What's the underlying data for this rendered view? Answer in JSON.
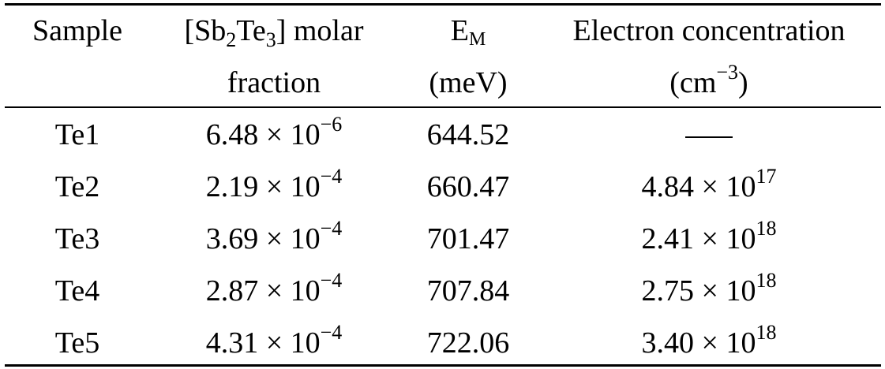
{
  "headers": {
    "sample": "Sample",
    "molar_open": "[Sb",
    "molar_sub1": "2",
    "molar_mid": "Te",
    "molar_sub2": "3",
    "molar_close": "] molar",
    "molar_line2": "fraction",
    "em_main": "E",
    "em_sub": "M",
    "em_unit": "(meV)",
    "conc_line1": "Electron concentration",
    "conc_unit_open": "(cm",
    "conc_unit_exp": "−3",
    "conc_unit_close": ")"
  },
  "rows": [
    {
      "sample": "Te1",
      "molar_mantissa": "6.48 × 10",
      "molar_exp": "−6",
      "em": "644.52",
      "conc_mantissa": "",
      "conc_exp": "",
      "conc_dash": "—"
    },
    {
      "sample": "Te2",
      "molar_mantissa": "2.19 × 10",
      "molar_exp": "−4",
      "em": "660.47",
      "conc_mantissa": "4.84 × 10",
      "conc_exp": "17"
    },
    {
      "sample": "Te3",
      "molar_mantissa": "3.69 × 10",
      "molar_exp": "−4",
      "em": "701.47",
      "conc_mantissa": "2.41 × 10",
      "conc_exp": "18"
    },
    {
      "sample": "Te4",
      "molar_mantissa": "2.87 × 10",
      "molar_exp": "−4",
      "em": "707.84",
      "conc_mantissa": "2.75 × 10",
      "conc_exp": "18"
    },
    {
      "sample": "Te5",
      "molar_mantissa": "4.31 × 10",
      "molar_exp": "−4",
      "em": "722.06",
      "conc_mantissa": "3.40 × 10",
      "conc_exp": "18"
    }
  ]
}
